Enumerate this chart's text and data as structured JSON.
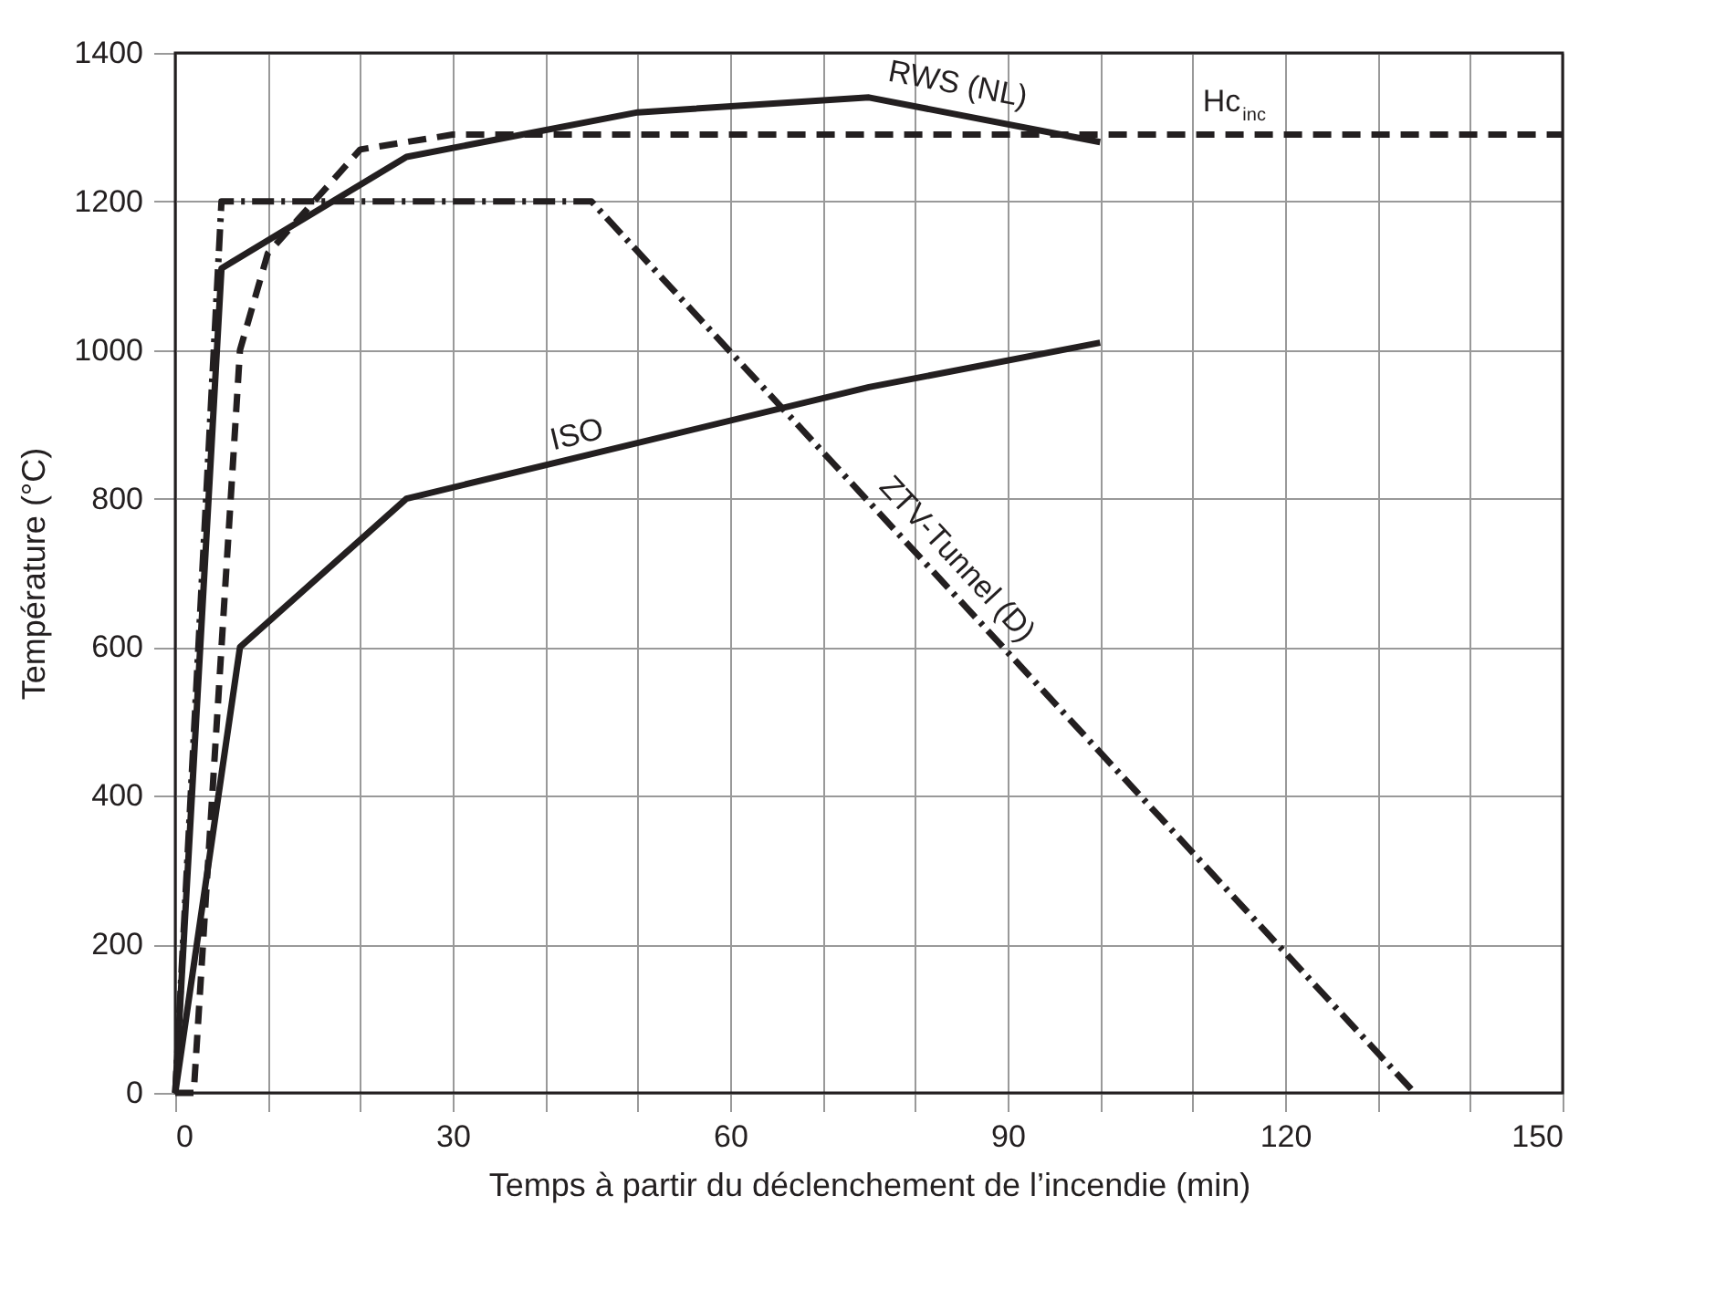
{
  "chart_data": {
    "type": "line",
    "xlabel": "Temps à partir du déclenchement de l’incendie (min)",
    "ylabel": "Température (°C)",
    "xlim": [
      0,
      150
    ],
    "ylim": [
      0,
      1400
    ],
    "xticks": [
      0,
      {
        "value": 10,
        "label": null
      },
      {
        "value": 20,
        "label": null
      },
      30,
      {
        "value": 40,
        "label": null
      },
      {
        "value": 50,
        "label": null
      },
      60,
      {
        "value": 70,
        "label": null
      },
      {
        "value": 80,
        "label": null
      },
      90,
      {
        "value": 100,
        "label": null
      },
      {
        "value": 110,
        "label": null
      },
      120,
      {
        "value": 130,
        "label": null
      },
      {
        "value": 140,
        "label": null
      },
      150
    ],
    "yticks": [
      0,
      200,
      400,
      600,
      800,
      1000,
      1200,
      1400
    ],
    "grid": true,
    "marker": "none",
    "series": [
      {
        "name": "ISO",
        "color": "#231f20",
        "line_style": "solid",
        "x": [
          0,
          7,
          25,
          75,
          100
        ],
        "values": [
          0,
          600,
          800,
          950,
          1010
        ]
      },
      {
        "name": "RWS (NL)",
        "color": "#231f20",
        "line_style": "solid",
        "x": [
          0,
          5,
          25,
          50,
          75,
          100
        ],
        "values": [
          0,
          1110,
          1260,
          1320,
          1340,
          1280
        ]
      },
      {
        "name": "Hc$_{inc}$",
        "color": "#231f20",
        "line_style": "dashed",
        "x": [
          0,
          2,
          7,
          10,
          20,
          30,
          150
        ],
        "values": [
          0,
          0,
          1000,
          1130,
          1270,
          1290,
          1290
        ]
      },
      {
        "name": "ZTV-Tunnel (D)",
        "color": "#231f20",
        "line_style": "dashdot",
        "x": [
          0,
          5,
          45,
          134
        ],
        "values": [
          0,
          1200,
          1200,
          0
        ]
      }
    ]
  }
}
